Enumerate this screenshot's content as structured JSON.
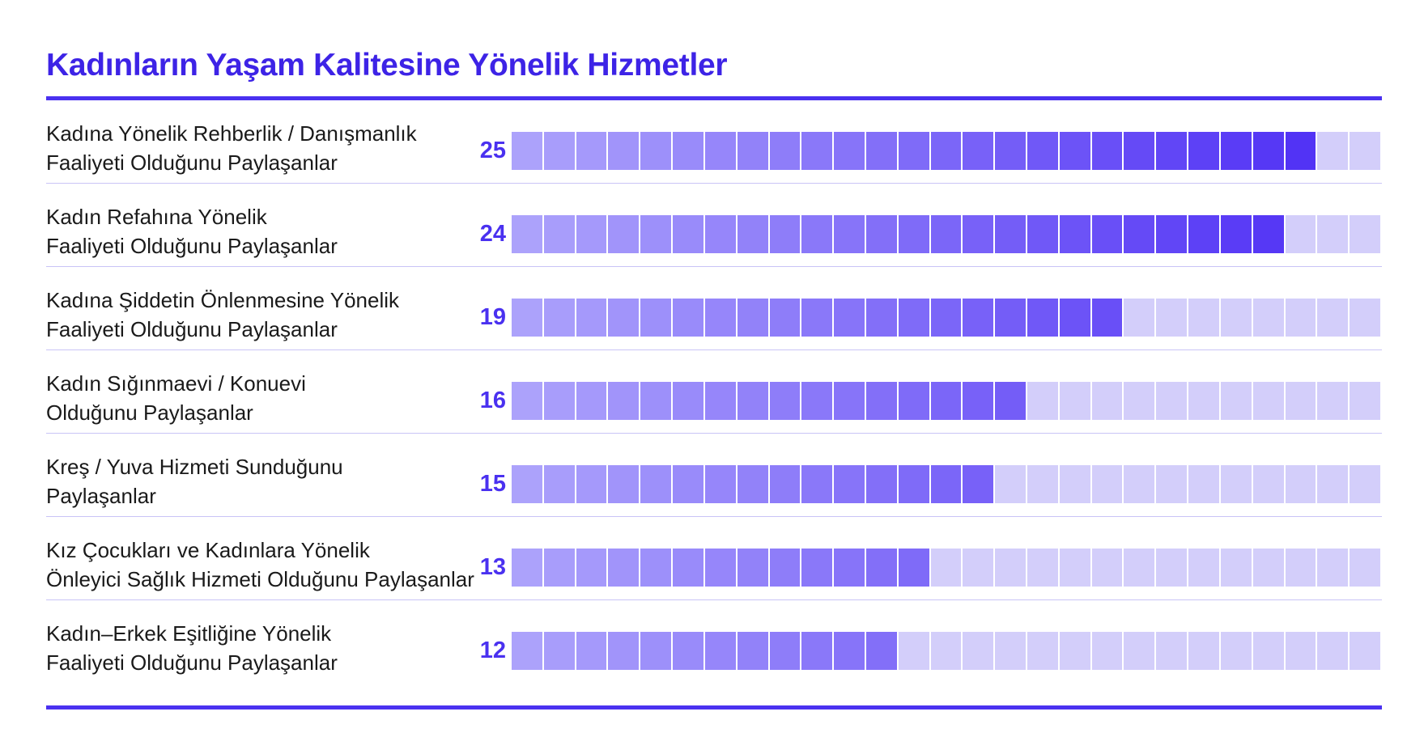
{
  "chart_data": {
    "type": "bar",
    "title": "Kadınların Yaşam Kalitesine Yönelik Hizmetler",
    "max_cells": 27,
    "rows": [
      {
        "label_lines": [
          "Kadına Yönelik Rehberlik / Danışmanlık",
          "Faaliyeti Olduğunu Paylaşanlar"
        ],
        "value": 25
      },
      {
        "label_lines": [
          "Kadın Refahına Yönelik",
          "Faaliyeti Olduğunu Paylaşanlar"
        ],
        "value": 24
      },
      {
        "label_lines": [
          "Kadına Şiddetin Önlenmesine Yönelik",
          "Faaliyeti Olduğunu Paylaşanlar"
        ],
        "value": 19
      },
      {
        "label_lines": [
          "Kadın Sığınmaevi / Konuevi",
          "Olduğunu Paylaşanlar"
        ],
        "value": 16
      },
      {
        "label_lines": [
          "Kreş / Yuva Hizmeti Sunduğunu",
          "Paylaşanlar"
        ],
        "value": 15
      },
      {
        "label_lines": [
          "Kız Çocukları ve Kadınlara Yönelik",
          "Önleyici Sağlık Hizmeti Olduğunu Paylaşanlar"
        ],
        "value": 13
      },
      {
        "label_lines": [
          "Kadın–Erkek Eşitliğine Yönelik",
          "Faaliyeti Olduğunu Paylaşanlar"
        ],
        "value": 12
      }
    ]
  },
  "colors": {
    "accent": "#4a31f0",
    "title": "#3d23e6",
    "empty_cell": "#d3cefa",
    "filled_start": "#aca2fb",
    "filled_end": "#5233f5",
    "divider": "#c9c4f6"
  }
}
